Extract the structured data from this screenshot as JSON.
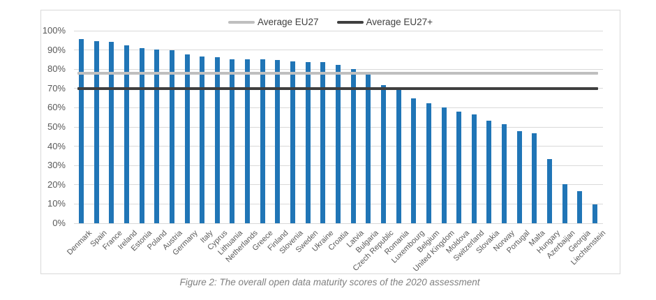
{
  "caption": "Figure 2: The overall open data maturity scores of the 2020 assessment",
  "chart_data": {
    "type": "bar",
    "title": "",
    "xlabel": "",
    "ylabel": "",
    "categories": [
      "Denmark",
      "Spain",
      "France",
      "Ireland",
      "Estonia",
      "Poland",
      "Austria",
      "Germany",
      "Italy",
      "Cyprus",
      "Lithuania",
      "Netherlands",
      "Greece",
      "Finland",
      "Slovenia",
      "Sweden",
      "Ukraine",
      "Croatia",
      "Latvia",
      "Bulgaria",
      "Czech Republic",
      "Romania",
      "Luxembourg",
      "Belgium",
      "United Kingdom",
      "Moldova",
      "Switzerland",
      "Slovakia",
      "Norway",
      "Portugal",
      "Malta",
      "Hungary",
      "Azerbaijan",
      "Georgia",
      "Liechtenstein"
    ],
    "values": [
      95.7,
      94.5,
      94.2,
      92.5,
      91.0,
      90.2,
      89.7,
      87.6,
      86.7,
      86.3,
      85.3,
      85.1,
      85.0,
      84.9,
      83.9,
      83.8,
      83.6,
      82.3,
      80.1,
      78.0,
      71.8,
      69.5,
      64.8,
      62.2,
      60.0,
      58.0,
      56.5,
      53.4,
      51.3,
      47.8,
      46.8,
      33.5,
      20.2,
      16.6,
      9.8
    ],
    "ylim": [
      0,
      100
    ],
    "ytick_labels": [
      "100%",
      "90%",
      "80%",
      "70%",
      "60%",
      "50%",
      "40%",
      "30%",
      "20%",
      "10%",
      "0%"
    ],
    "grid": true,
    "bar_color": "#2075B6",
    "gridline_color": "#D9D9D9",
    "legend_position": "top-center",
    "reference_lines": [
      {
        "name": "Average EU27",
        "value": 78,
        "color": "#BFBFBF"
      },
      {
        "name": "Average EU27+",
        "value": 70,
        "color": "#3F3F3F"
      }
    ]
  }
}
